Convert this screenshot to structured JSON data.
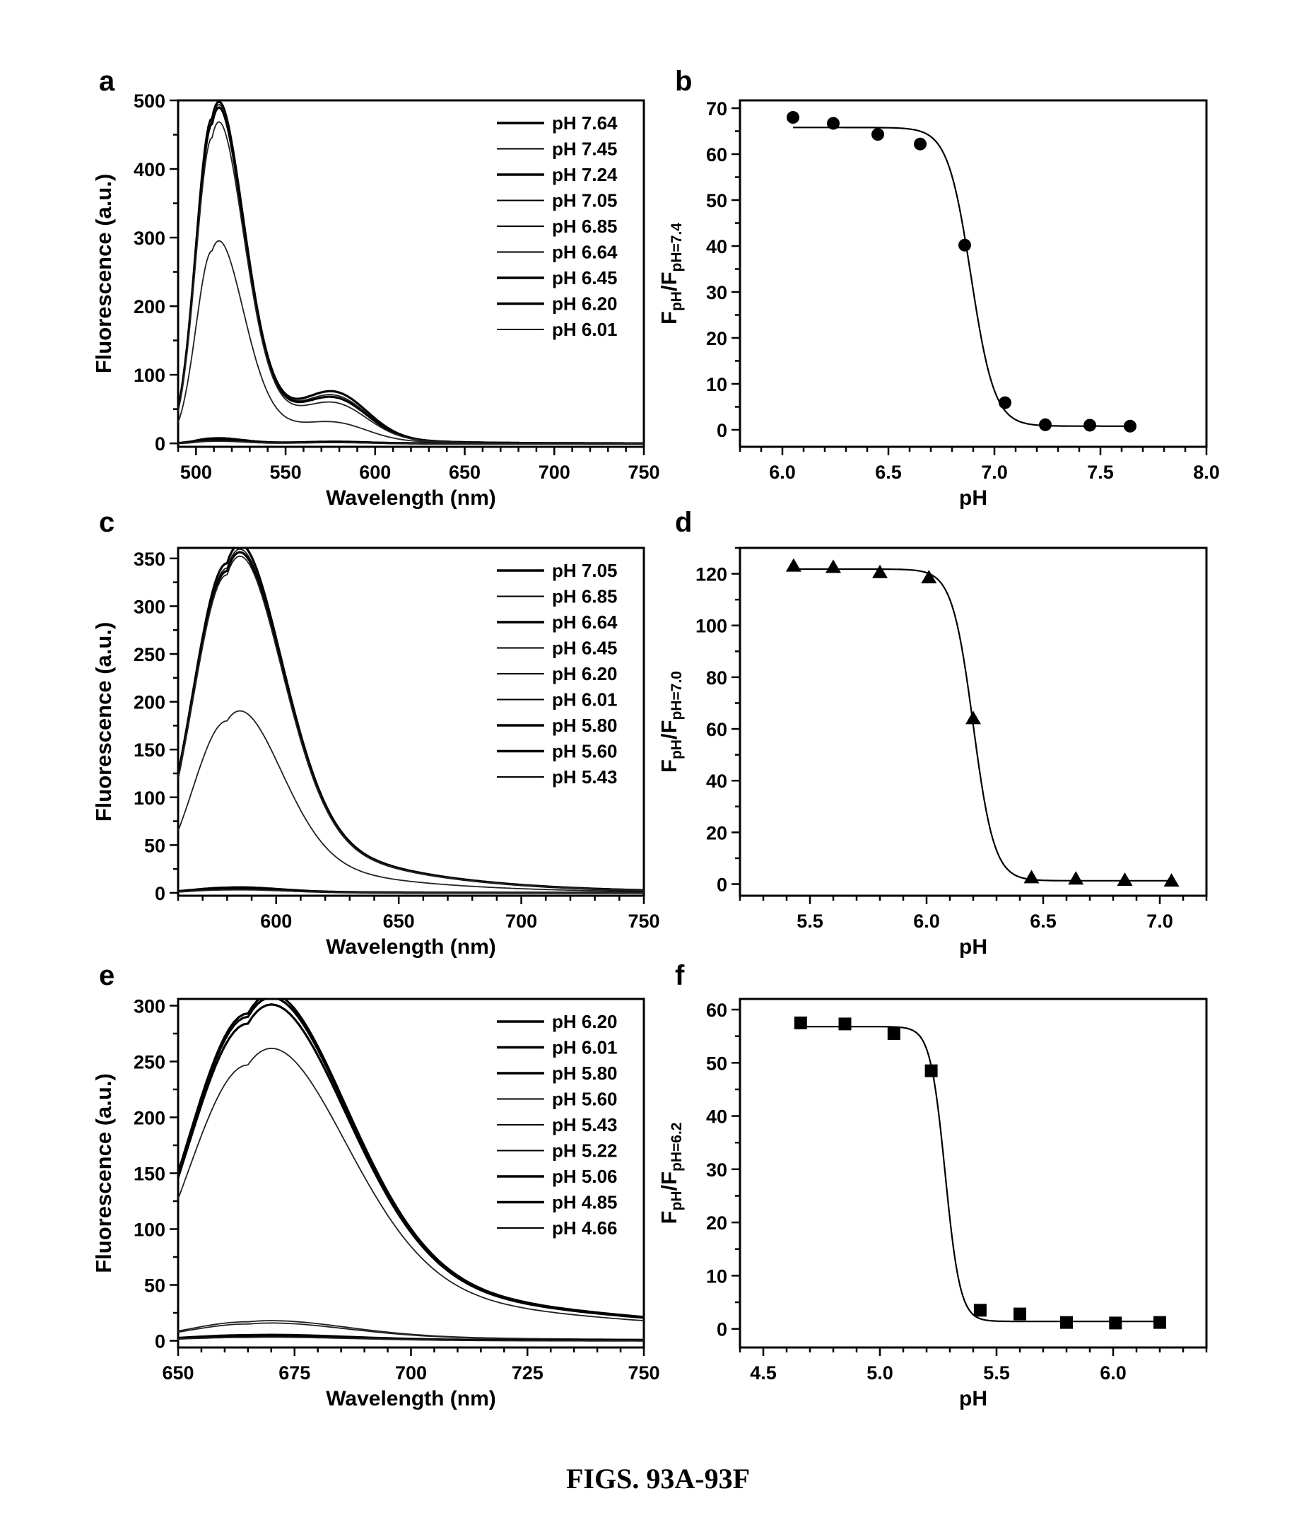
{
  "caption": "FIGS. 93A-93F",
  "chart_data": [
    {
      "id": "a",
      "panel_label": "a",
      "type": "line",
      "xlabel": "Wavelength (nm)",
      "ylabel": "Fluorescence (a.u.)",
      "xlim": [
        490,
        750
      ],
      "ylim": [
        -5,
        500
      ],
      "xticks": [
        500,
        550,
        600,
        650,
        700,
        750
      ],
      "yticks": [
        0,
        100,
        200,
        300,
        400,
        500
      ],
      "legend_position": "top-right",
      "peak_nm": 509,
      "series": [
        {
          "name": "pH 7.64",
          "peak": 474,
          "shoulder": 60,
          "weight": "heavy"
        },
        {
          "name": "pH 7.45",
          "peak": 470,
          "shoulder": 55,
          "weight": "light"
        },
        {
          "name": "pH 7.24",
          "peak": 466,
          "shoulder": 52,
          "weight": "heavy"
        },
        {
          "name": "pH 7.05",
          "peak": 446,
          "shoulder": 45,
          "weight": "light"
        },
        {
          "name": "pH 6.85",
          "peak": 281,
          "shoulder": 22,
          "weight": "light"
        },
        {
          "name": "pH 6.64",
          "peak": 8,
          "shoulder": 3,
          "weight": "light"
        },
        {
          "name": "pH 6.45",
          "peak": 6,
          "shoulder": 2,
          "weight": "heavy"
        },
        {
          "name": "pH 6.20",
          "peak": 4,
          "shoulder": 2,
          "weight": "heavy"
        },
        {
          "name": "pH 6.01",
          "peak": 3,
          "shoulder": 1,
          "weight": "light"
        }
      ]
    },
    {
      "id": "b",
      "panel_label": "b",
      "type": "scatter",
      "xlabel": "pH",
      "ylabel_main": "F",
      "ylabel_sub1": "pH",
      "ylabel_mid": "/F",
      "ylabel_sub2": "pH=7.4",
      "xlim": [
        5.8,
        8.0
      ],
      "ylim": [
        -3.7,
        71.7
      ],
      "xticks": [
        "6.0",
        "6.5",
        "7.0",
        "7.5",
        "8.0"
      ],
      "yticks": [
        0,
        10,
        20,
        30,
        40,
        50,
        60,
        70
      ],
      "marker": "circle",
      "x": [
        6.05,
        6.24,
        6.45,
        6.65,
        6.86,
        7.05,
        7.24,
        7.45,
        7.64
      ],
      "y": [
        68.0,
        66.7,
        64.3,
        62.2,
        40.2,
        5.9,
        1.1,
        1.0,
        0.8
      ],
      "fit": {
        "top": 65.8,
        "bottom": 0.8,
        "pKa": 6.89,
        "slope": 0.055,
        "x_range": [
          6.05,
          7.64
        ]
      }
    },
    {
      "id": "c",
      "panel_label": "c",
      "type": "line",
      "xlabel": "Wavelength (nm)",
      "ylabel": "Fluorescence (a.u.)",
      "xlim": [
        560,
        750
      ],
      "ylim": [
        -3,
        361
      ],
      "xticks": [
        600,
        650,
        700,
        750
      ],
      "yticks": [
        0,
        50,
        100,
        150,
        200,
        250,
        300,
        350
      ],
      "legend_position": "top-right",
      "peak_nm": 580,
      "series": [
        {
          "name": "pH 7.05",
          "peak": 345,
          "weight": "heavy"
        },
        {
          "name": "pH 6.85",
          "peak": 340,
          "weight": "light"
        },
        {
          "name": "pH 6.64",
          "peak": 337,
          "weight": "heavy"
        },
        {
          "name": "pH 6.45",
          "peak": 333,
          "weight": "light"
        },
        {
          "name": "pH 6.20",
          "peak": 180,
          "weight": "light"
        },
        {
          "name": "pH 6.01",
          "peak": 6,
          "weight": "light"
        },
        {
          "name": "pH 5.80",
          "peak": 5,
          "weight": "heavy"
        },
        {
          "name": "pH 5.60",
          "peak": 4,
          "weight": "heavy"
        },
        {
          "name": "pH 5.43",
          "peak": 3,
          "weight": "light"
        }
      ]
    },
    {
      "id": "d",
      "panel_label": "d",
      "type": "scatter",
      "xlabel": "pH",
      "ylabel_main": "F",
      "ylabel_sub1": "pH",
      "ylabel_mid": "/F",
      "ylabel_sub2": "pH=7.0",
      "xlim": [
        5.2,
        7.2
      ],
      "ylim": [
        -4.5,
        130
      ],
      "xticks": [
        "5.5",
        "6.0",
        "6.5",
        "7.0"
      ],
      "yticks": [
        0,
        20,
        40,
        60,
        80,
        100,
        120
      ],
      "marker": "triangle",
      "x": [
        5.43,
        5.6,
        5.8,
        6.01,
        6.2,
        6.45,
        6.64,
        6.85,
        7.05
      ],
      "y": [
        123.0,
        122.5,
        120.5,
        118.5,
        64.0,
        2.5,
        2.0,
        1.5,
        1.2
      ],
      "fit": {
        "top": 121.8,
        "bottom": 1.3,
        "pKa": 6.2,
        "slope": 0.045,
        "x_range": [
          5.43,
          7.05
        ]
      }
    },
    {
      "id": "e",
      "panel_label": "e",
      "type": "line",
      "xlabel": "Wavelength (nm)",
      "ylabel": "Fluorescence (a.u.)",
      "xlim": [
        650,
        750
      ],
      "ylim": [
        -6,
        306
      ],
      "xticks": [
        650,
        675,
        700,
        725,
        750
      ],
      "yticks": [
        0,
        50,
        100,
        150,
        200,
        250,
        300
      ],
      "legend_position": "top-right",
      "peak_nm": 665,
      "series": [
        {
          "name": "pH 6.20",
          "peak": 293,
          "weight": "heavy"
        },
        {
          "name": "pH 6.01",
          "peak": 290,
          "weight": "heavy"
        },
        {
          "name": "pH 5.80",
          "peak": 284,
          "weight": "heavy"
        },
        {
          "name": "pH 5.60",
          "peak": 247,
          "weight": "light"
        },
        {
          "name": "pH 5.43",
          "peak": 17,
          "weight": "light"
        },
        {
          "name": "pH 5.22",
          "peak": 15,
          "weight": "light"
        },
        {
          "name": "pH 5.06",
          "peak": 5,
          "weight": "heavy"
        },
        {
          "name": "pH 4.85",
          "peak": 4,
          "weight": "heavy"
        },
        {
          "name": "pH 4.66",
          "peak": 3,
          "weight": "light"
        }
      ]
    },
    {
      "id": "f",
      "panel_label": "f",
      "type": "scatter",
      "xlabel": "pH",
      "ylabel_main": "F",
      "ylabel_sub1": "pH",
      "ylabel_mid": "/F",
      "ylabel_sub2": "pH=6.2",
      "xlim": [
        4.4,
        6.4
      ],
      "ylim": [
        -3.5,
        62
      ],
      "xticks": [
        "4.5",
        "5.0",
        "5.5",
        "6.0"
      ],
      "yticks": [
        0,
        10,
        20,
        30,
        40,
        50,
        60
      ],
      "marker": "square",
      "x": [
        4.66,
        4.85,
        5.06,
        5.22,
        5.43,
        5.6,
        5.8,
        6.01,
        6.2
      ],
      "y": [
        57.5,
        57.3,
        55.5,
        48.5,
        3.5,
        2.8,
        1.2,
        1.1,
        1.2
      ],
      "fit": {
        "top": 56.8,
        "bottom": 1.4,
        "pKa": 5.28,
        "slope": 0.032,
        "x_range": [
          4.66,
          6.2
        ]
      }
    }
  ]
}
